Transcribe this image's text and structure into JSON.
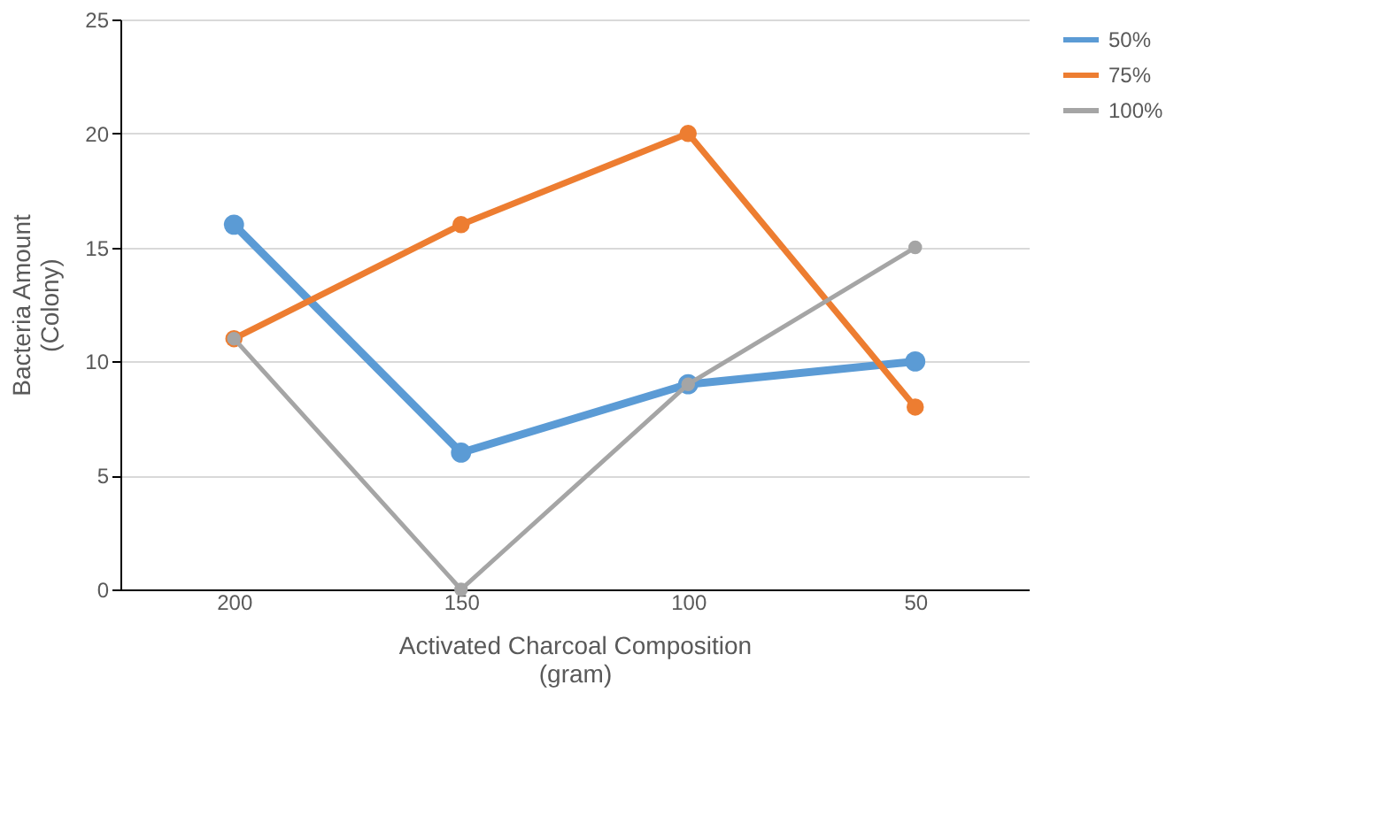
{
  "chart_data": {
    "type": "line",
    "xlabel": "Activated Charcoal Composition\n(gram)",
    "ylabel": "Bacteria Amount\n(Colony)",
    "categories": [
      "200",
      "150",
      "100",
      "50"
    ],
    "series": [
      {
        "name": "50%",
        "color": "#5b9bd5",
        "values": [
          16,
          6,
          9,
          10
        ]
      },
      {
        "name": "75%",
        "color": "#ed7d31",
        "values": [
          11,
          16,
          20,
          8
        ]
      },
      {
        "name": "100%",
        "color": "#a5a5a5",
        "values": [
          11,
          0,
          9,
          15
        ]
      }
    ],
    "ylim": [
      0,
      25
    ],
    "yticks": [
      0,
      5,
      10,
      15,
      20,
      25
    ],
    "grid": "y",
    "legend": "right",
    "marker": "circle",
    "line_style": "solid"
  }
}
